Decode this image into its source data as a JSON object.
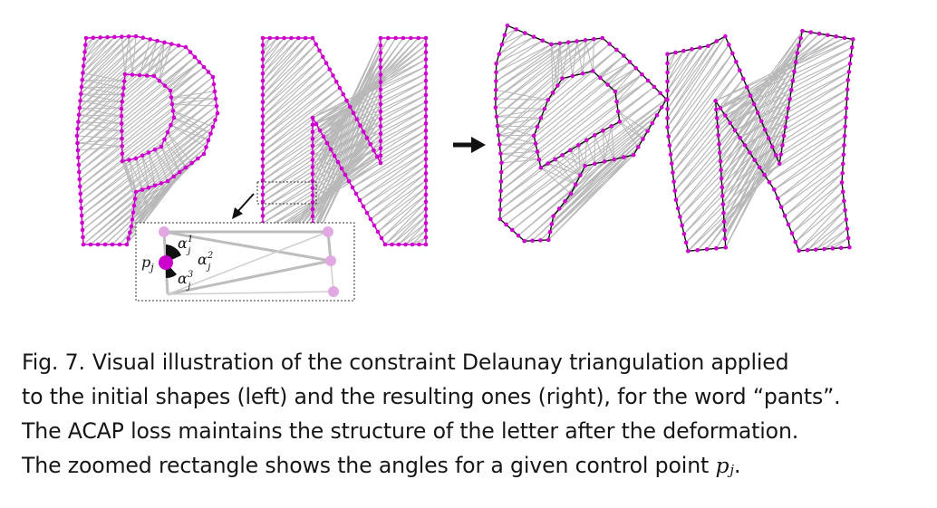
{
  "figure": {
    "accent_color": "#cc00cc",
    "mesh_color": "#b8b8b8",
    "edge_color": "#111111",
    "arrow_icon": "right-arrow",
    "zoom_arrow_icon": "diagonal-arrow",
    "letters_left": [
      "P",
      "N"
    ],
    "letters_right": [
      "P",
      "N"
    ],
    "zoom_labels": {
      "point": "p",
      "point_sub": "j",
      "alpha": "α",
      "alpha1_sup": "1",
      "alpha2_sup": "2",
      "alpha3_sup": "3",
      "alpha_sub": "j"
    }
  },
  "caption": {
    "label": "Fig. 7.",
    "line1": "Visual illustration of the constraint Delaunay triangulation applied",
    "line2": "to the initial shapes (left) and the resulting ones (right), for the word “pants”.",
    "line3": "The ACAP loss maintains the structure of the letter after the deformation.",
    "line4_prefix": "The zoomed rectangle shows the angles for a given control point ",
    "line4_var": "p",
    "line4_var_sub": "j",
    "line4_suffix": "."
  }
}
